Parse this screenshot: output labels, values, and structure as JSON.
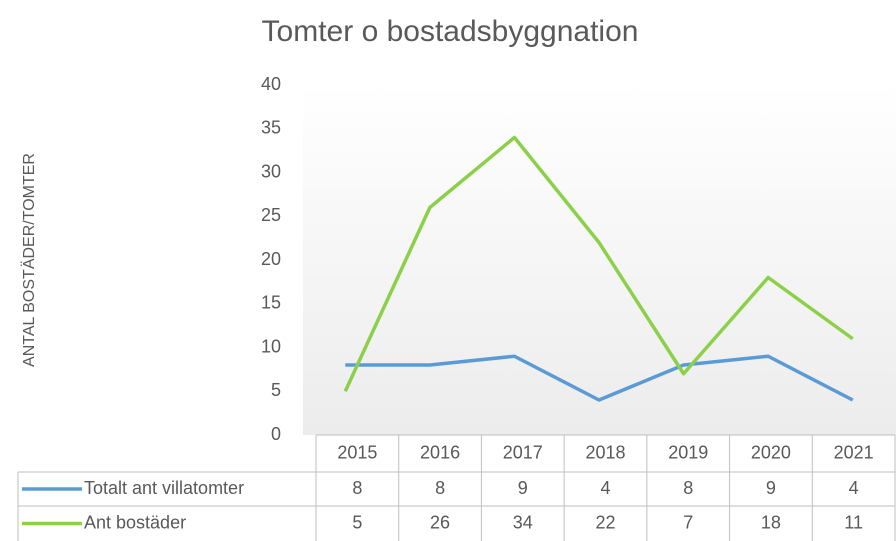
{
  "chart_data": {
    "type": "line",
    "title": "Tomter o bostadsbyggnation",
    "y_label": "ANTAL BOSTÄDER/TOMTER",
    "categories": [
      "2015",
      "2016",
      "2017",
      "2018",
      "2019",
      "2020",
      "2021"
    ],
    "series": [
      {
        "name": "Totalt ant villatomter",
        "color": "#5b9bd5",
        "values": [
          8,
          8,
          9,
          4,
          8,
          9,
          4
        ]
      },
      {
        "name": "Ant bostäder",
        "color": "#8cd04a",
        "values": [
          5,
          26,
          34,
          22,
          7,
          18,
          11
        ]
      }
    ],
    "ylim": [
      0,
      40
    ],
    "yticks": [
      0,
      5,
      10,
      15,
      20,
      25,
      30,
      35,
      40
    ],
    "grid": false,
    "data_table": true
  }
}
